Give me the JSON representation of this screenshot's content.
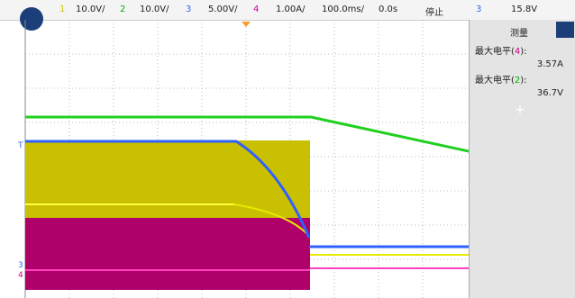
{
  "top_bar": {
    "channels": [
      {
        "number": "1",
        "scale": "10.0V/"
      },
      {
        "number": "2",
        "scale": "10.0V/"
      },
      {
        "number": "3",
        "scale": "5.00V/"
      },
      {
        "number": "4",
        "scale": "1.00A/"
      }
    ],
    "timebase": "100.0ms/",
    "delay": "0.0s",
    "status": "停止",
    "trigger": {
      "source": "3",
      "level": "15.8V"
    }
  },
  "measure_panel": {
    "title": "测量",
    "items": [
      {
        "prefix": "最大电平(",
        "channel": "4",
        "suffix": "):",
        "value": "3.57A"
      },
      {
        "prefix": "最大电平(",
        "channel": "2",
        "suffix": "):",
        "value": "36.7V"
      }
    ]
  },
  "markers": {
    "trigger": "T",
    "ch3": "3",
    "ch4": "4"
  }
}
